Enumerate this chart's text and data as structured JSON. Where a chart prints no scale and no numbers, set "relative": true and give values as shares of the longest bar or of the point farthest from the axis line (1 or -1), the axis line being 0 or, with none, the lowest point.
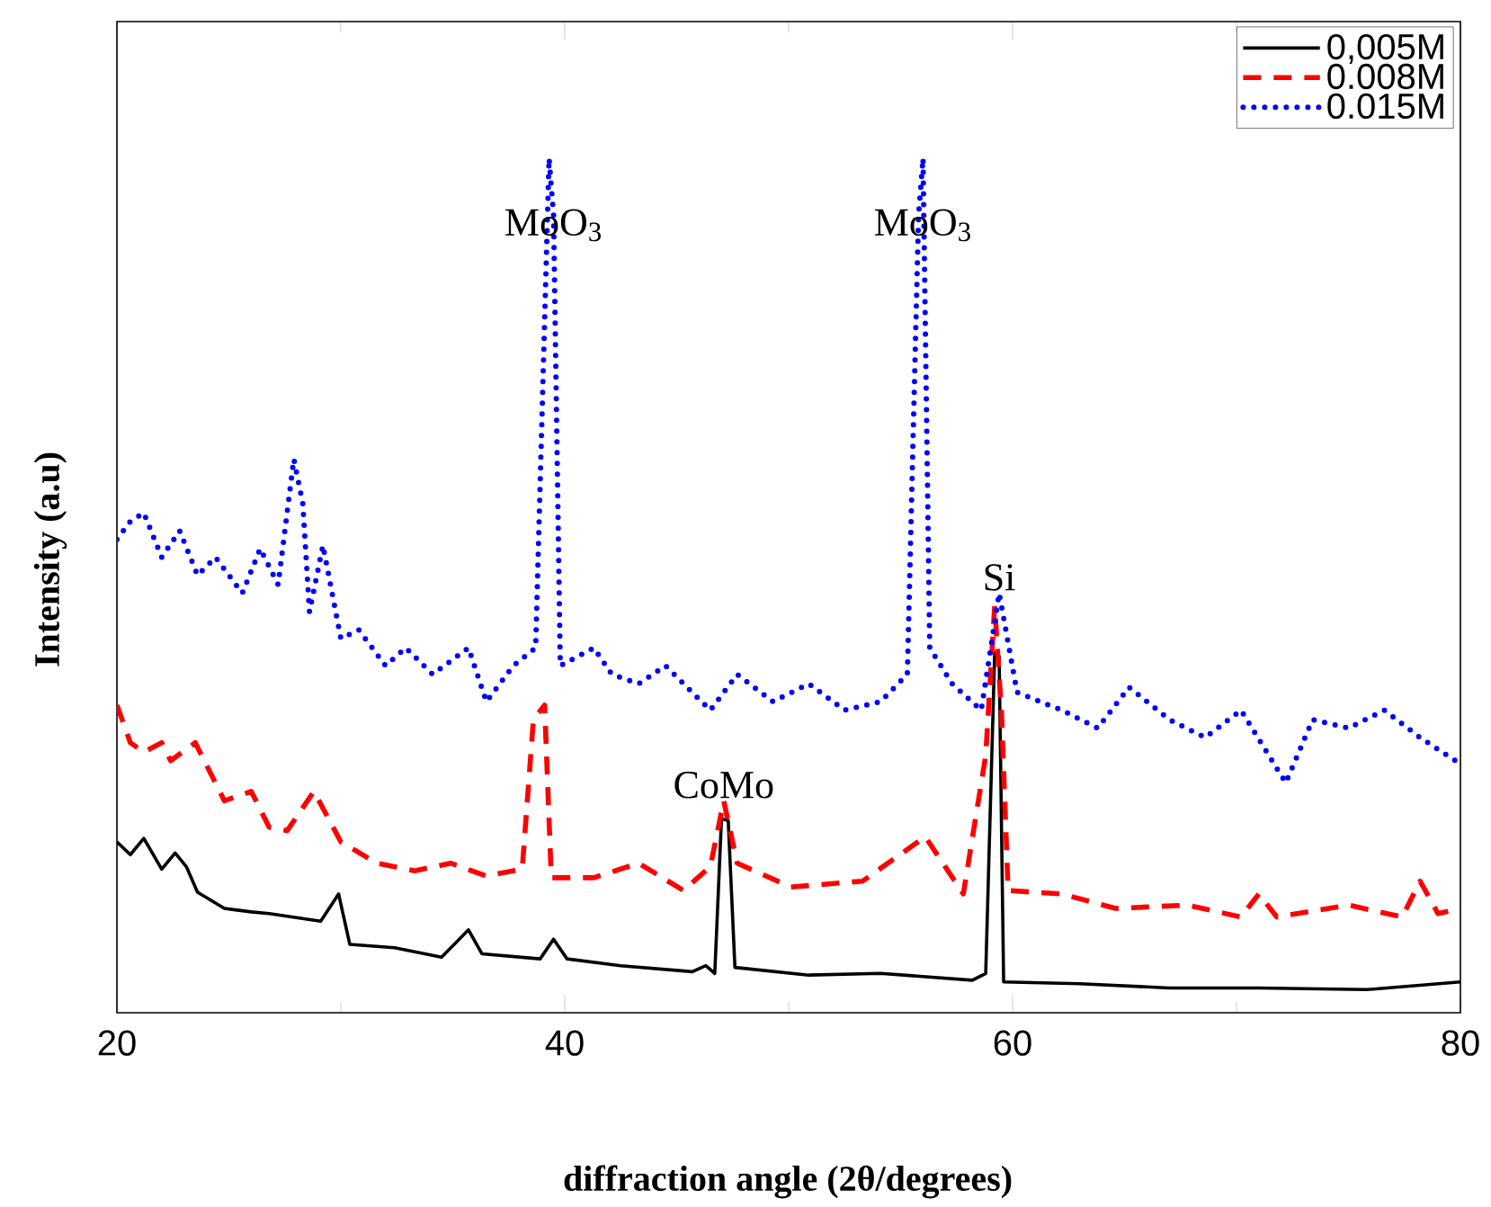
{
  "chart_data": {
    "type": "line",
    "relative": true,
    "xlabel": "diffraction angle (2θ/degrees)",
    "ylabel": "Intensity (a.u)",
    "xlim": [
      20,
      80
    ],
    "xticks": [
      20,
      40,
      60,
      80
    ],
    "tick_labels": "x",
    "grid": false,
    "legend": "top right",
    "marker": "none",
    "annotations": [
      {
        "text": "MoO$_{3}$",
        "x": 39.5,
        "y": 0.9
      },
      {
        "text": "MoO$_{3}$",
        "x": 56,
        "y": 0.9
      },
      {
        "text": "CoMo",
        "x": 47.1,
        "y": 0.248
      },
      {
        "text": "Si",
        "x": 59.4,
        "y": 0.491
      }
    ],
    "series": [
      {
        "name": "0,005M",
        "color": "#000000",
        "line_style": "solid",
        "x": [
          20,
          20.6,
          21.2,
          22,
          22.6,
          23.1,
          23.6,
          24.8,
          26,
          26.8,
          29.1,
          29.9,
          30.4,
          32.4,
          34.5,
          35.7,
          36.3,
          38.9,
          39.5,
          40.1,
          42.5,
          45.7,
          46.3,
          46.7,
          47.0,
          47.3,
          47.6,
          50.9,
          54.1,
          58.2,
          58.8,
          59.2,
          59.4,
          59.6,
          63,
          67,
          71,
          75.8,
          80
        ],
        "values": [
          0.2,
          0.185,
          0.204,
          0.168,
          0.187,
          0.171,
          0.141,
          0.122,
          0.118,
          0.116,
          0.107,
          0.139,
          0.08,
          0.076,
          0.065,
          0.097,
          0.069,
          0.063,
          0.086,
          0.063,
          0.055,
          0.048,
          0.055,
          0.046,
          0.227,
          0.225,
          0.053,
          0.044,
          0.046,
          0.038,
          0.046,
          0.421,
          0.417,
          0.036,
          0.034,
          0.029,
          0.029,
          0.027,
          0.036
        ]
      },
      {
        "name": "0.008M",
        "color": "#ff0000",
        "line_style": "dashed",
        "x": [
          20,
          20.6,
          21.2,
          22,
          22.4,
          23.5,
          24.8,
          26,
          26.8,
          27.6,
          28.8,
          30,
          31.6,
          33.3,
          34.9,
          36.5,
          38.1,
          38.6,
          39.1,
          39.4,
          41.3,
          43.3,
          45.3,
          46.5,
          47.1,
          47.7,
          50.1,
          53.3,
          56.1,
          57.8,
          58.8,
          59.2,
          59.5,
          59.8,
          62.2,
          64.6,
          67.8,
          70.2,
          71,
          71.8,
          75,
          77.4,
          78.2,
          79,
          80
        ],
        "values": [
          0.36,
          0.316,
          0.305,
          0.316,
          0.295,
          0.316,
          0.248,
          0.259,
          0.217,
          0.213,
          0.259,
          0.2,
          0.175,
          0.166,
          0.175,
          0.16,
          0.168,
          0.343,
          0.36,
          0.158,
          0.158,
          0.175,
          0.143,
          0.171,
          0.248,
          0.175,
          0.147,
          0.154,
          0.206,
          0.139,
          0.301,
          0.476,
          0.354,
          0.143,
          0.139,
          0.122,
          0.126,
          0.112,
          0.139,
          0.112,
          0.126,
          0.112,
          0.154,
          0.116,
          0.122
        ]
      },
      {
        "name": "0.015M",
        "color": "#0000ff",
        "line_style": "dotted",
        "x": [
          20,
          20.6,
          21.2,
          22,
          22.8,
          23.6,
          24.4,
          25.6,
          26.4,
          27.2,
          27.9,
          28.3,
          28.6,
          29.2,
          30,
          30.8,
          32,
          32.9,
          34.1,
          35.7,
          36.5,
          37.7,
          38.7,
          39.3,
          39.5,
          39.8,
          41.3,
          42.1,
          43.3,
          44.5,
          46.5,
          47.7,
          49.3,
          50.9,
          52.5,
          54.1,
          55.3,
          55.8,
          56,
          56.3,
          57.3,
          58.6,
          59.4,
          60.2,
          62.2,
          63.8,
          65.2,
          67,
          68.6,
          70.2,
          72.2,
          73.4,
          75,
          76.6,
          78.2,
          80
        ],
        "values": [
          0.554,
          0.575,
          0.585,
          0.533,
          0.564,
          0.512,
          0.533,
          0.491,
          0.543,
          0.501,
          0.648,
          0.596,
          0.469,
          0.547,
          0.438,
          0.448,
          0.406,
          0.427,
          0.396,
          0.427,
          0.364,
          0.406,
          0.427,
          1,
          0.933,
          0.406,
          0.427,
          0.396,
          0.385,
          0.406,
          0.354,
          0.396,
          0.364,
          0.385,
          0.354,
          0.364,
          0.396,
          0.933,
          1,
          0.427,
          0.385,
          0.354,
          0.491,
          0.375,
          0.354,
          0.333,
          0.381,
          0.343,
          0.322,
          0.354,
          0.269,
          0.343,
          0.333,
          0.354,
          0.322,
          0.291
        ]
      }
    ]
  }
}
